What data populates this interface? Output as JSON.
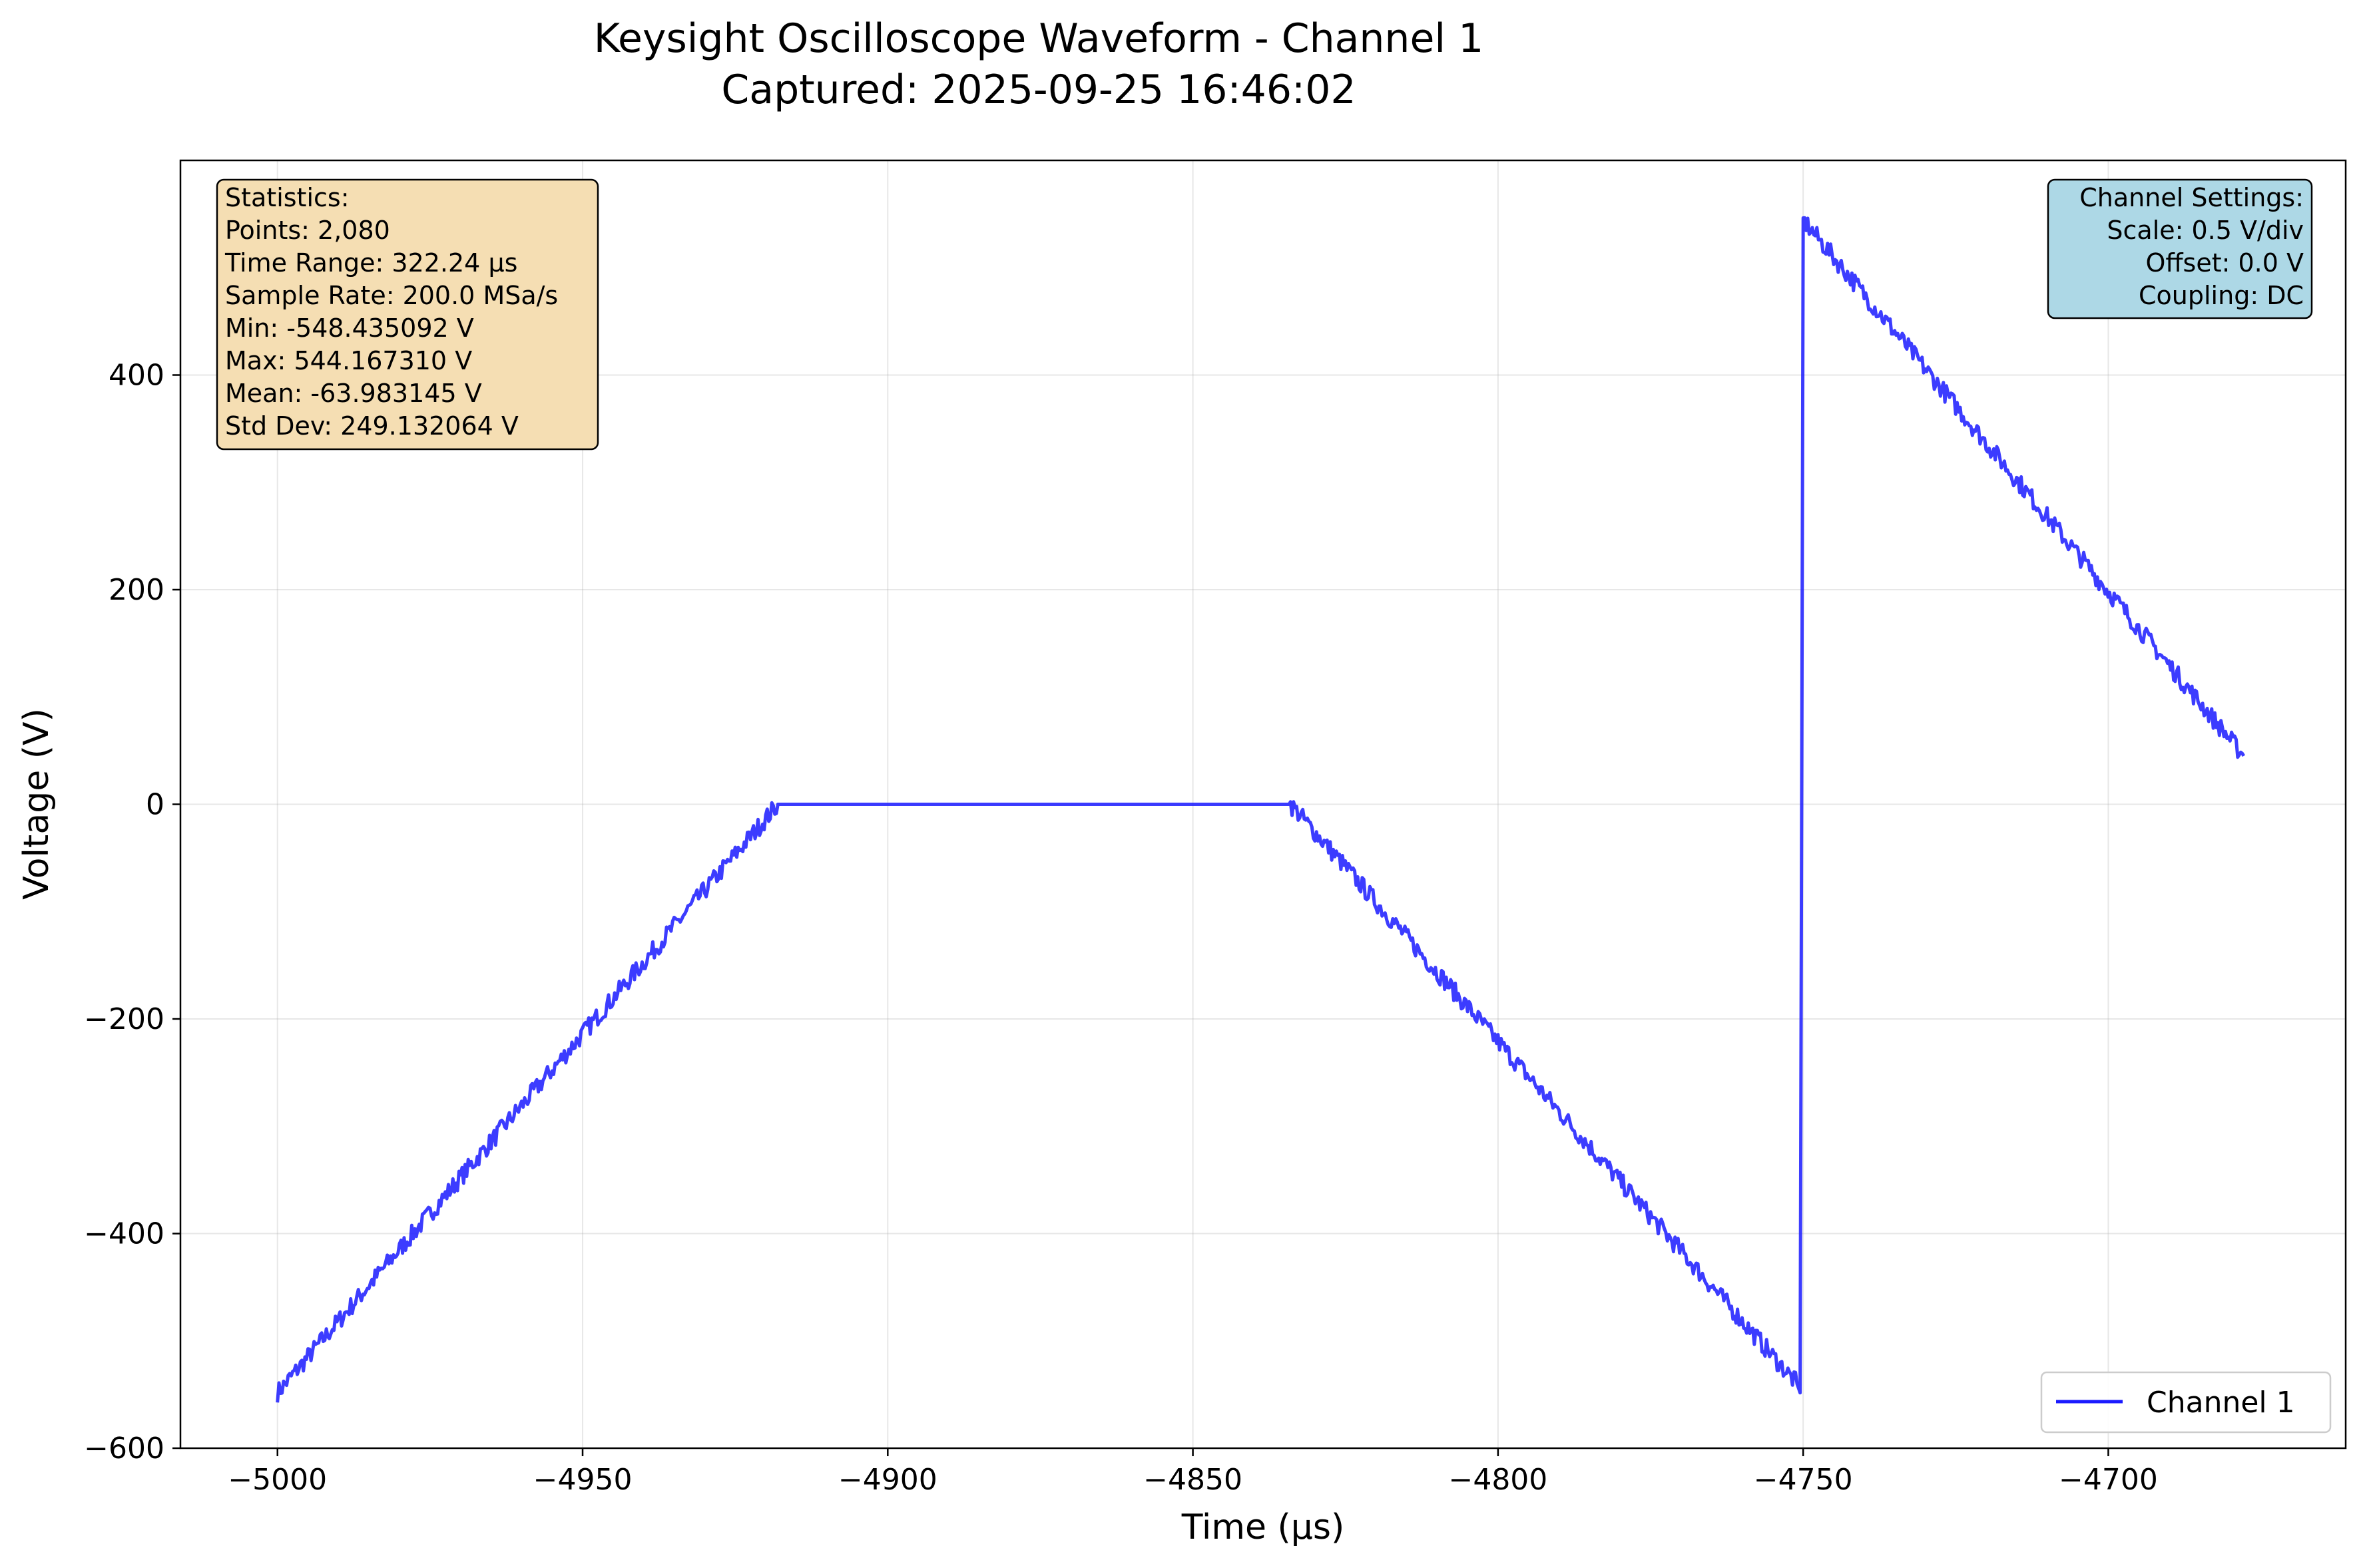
{
  "chart_data": {
    "type": "line",
    "title": [
      "Keysight Oscilloscope Waveform - Channel 1",
      "Captured: 2025-09-25 16:46:02"
    ],
    "xlabel": "Time (µs)",
    "ylabel": "Voltage (V)",
    "xlim": [
      -5015.9,
      -4661.1
    ],
    "ylim": [
      -600,
      600
    ],
    "x_ticks": [
      -5000,
      -4950,
      -4900,
      -4850,
      -4800,
      -4750,
      -4700
    ],
    "x_tick_labels": [
      "−5000",
      "−4950",
      "−4900",
      "−4850",
      "−4800",
      "−4750",
      "−4700"
    ],
    "y_ticks": [
      -600,
      -400,
      -200,
      0,
      200,
      400
    ],
    "y_tick_labels": [
      "−600",
      "−400",
      "−200",
      "0",
      "200",
      "400"
    ],
    "grid": true,
    "legend_position": "bottom-right",
    "series": [
      {
        "name": "Channel 1",
        "color": "#1a1aff",
        "x": [
          -5000,
          -4918,
          -4834,
          -4751,
          -4750.5,
          -4750,
          -4677.8
        ],
        "y": [
          -548.4,
          0,
          0,
          -540,
          -548.4,
          544.2,
          45
        ]
      }
    ],
    "stats_box": {
      "lines": [
        "Statistics:",
        "Points: 2,080",
        "Time Range: 322.24 µs",
        "Sample Rate: 200.0 MSa/s",
        "Min: -548.435092 V",
        "Max: 544.167310 V",
        "Mean: -63.983145 V",
        "Std Dev: 249.132064 V"
      ],
      "background": "#f5deb3"
    },
    "settings_box": {
      "lines": [
        "Channel Settings:",
        "Scale: 0.5 V/div",
        "Offset: 0.0 V",
        "Coupling: DC"
      ],
      "background": "#add8e6"
    }
  }
}
